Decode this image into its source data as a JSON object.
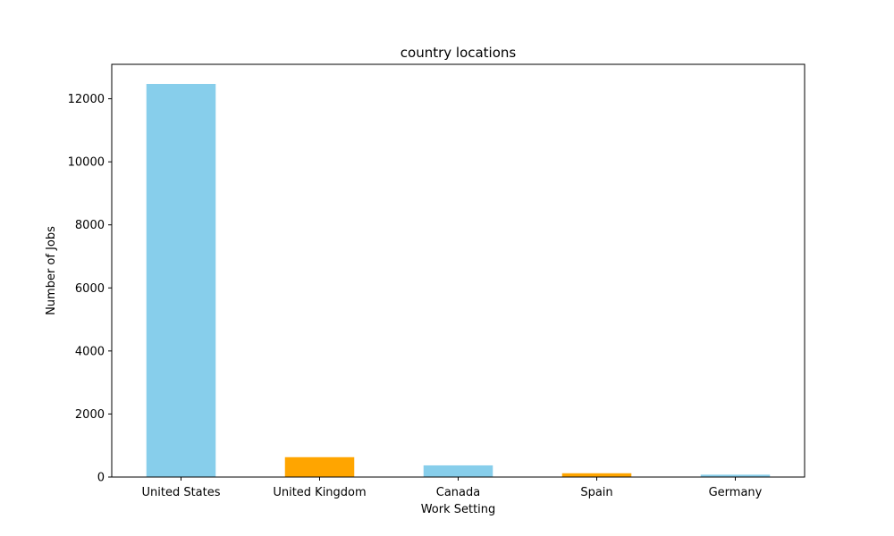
{
  "chart_data": {
    "type": "bar",
    "title": "country locations",
    "xlabel": "Work Setting",
    "ylabel": "Number of Jobs",
    "categories": [
      "United States",
      "United Kingdom",
      "Canada",
      "Spain",
      "Germany"
    ],
    "values": [
      12470,
      630,
      370,
      120,
      75
    ],
    "colors": [
      "#87ceeb",
      "#ffa500",
      "#87ceeb",
      "#ffa500",
      "#87ceeb"
    ],
    "ylim": [
      0,
      13093
    ],
    "yticks": [
      0,
      2000,
      4000,
      6000,
      8000,
      10000,
      12000
    ],
    "ytick_labels": [
      "0",
      "2000",
      "4000",
      "6000",
      "8000",
      "10000",
      "12000"
    ],
    "grid": false,
    "legend": "none"
  }
}
